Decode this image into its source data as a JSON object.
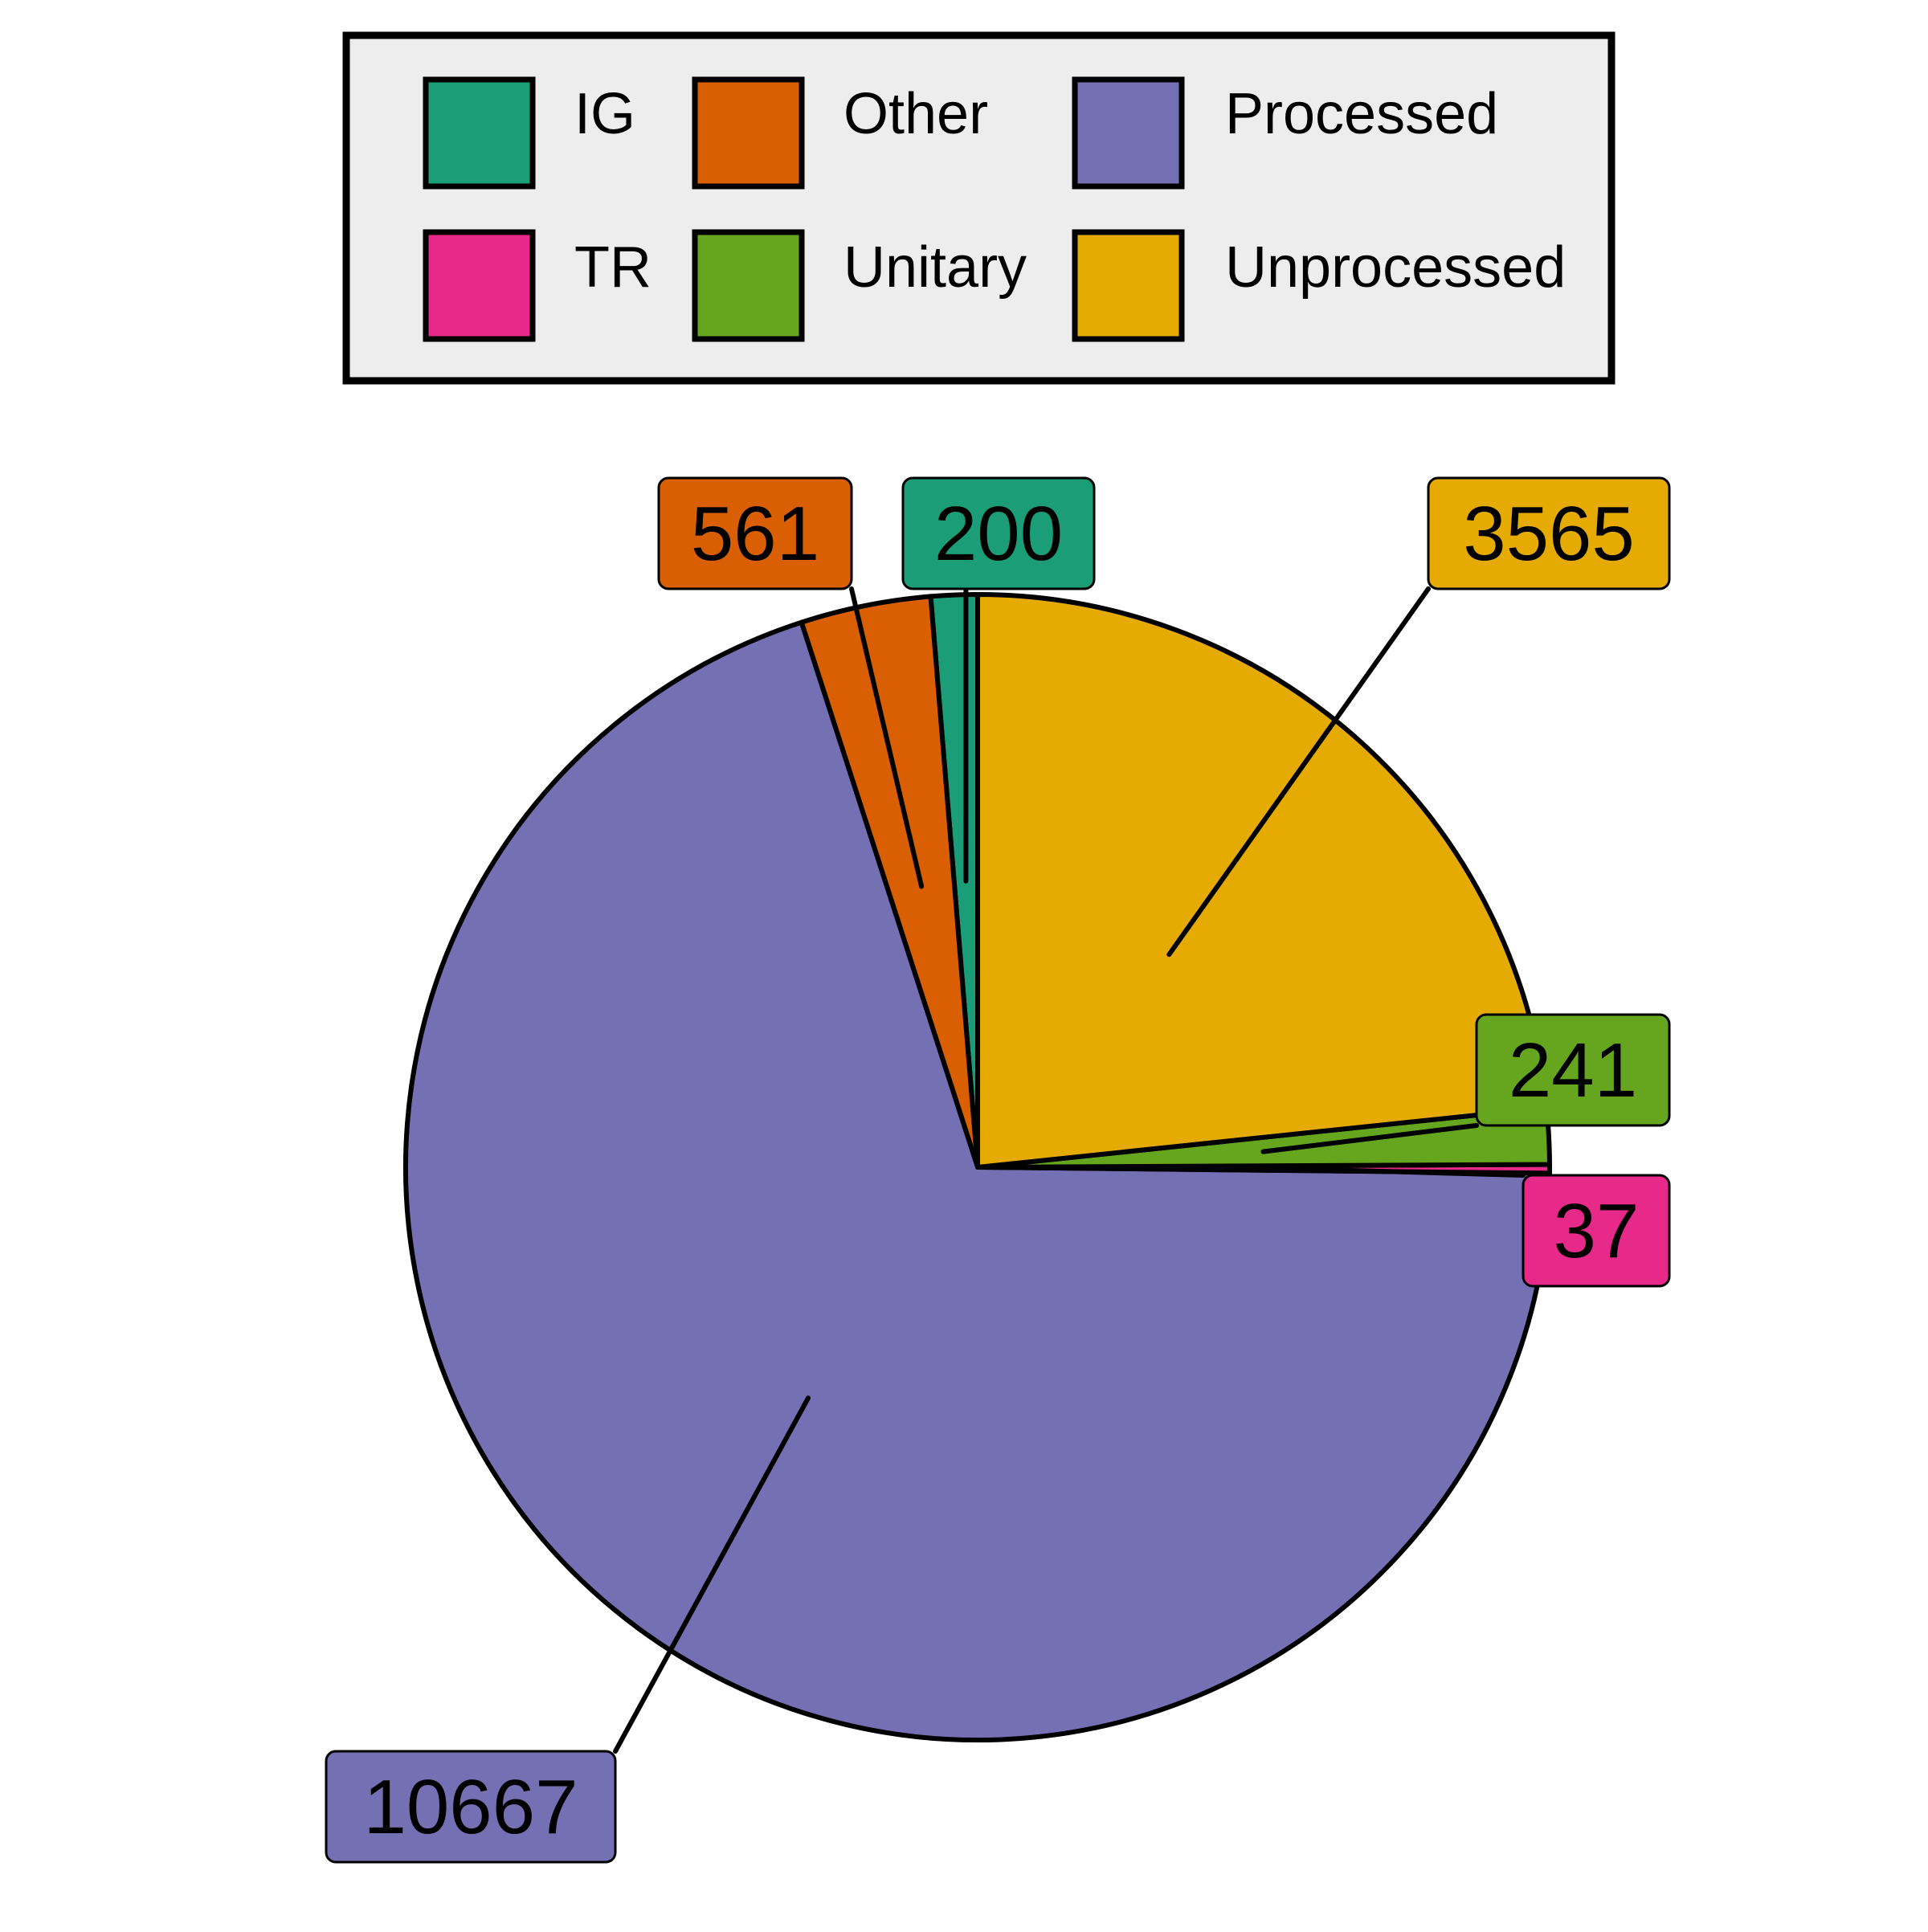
{
  "chart_data": {
    "type": "pie",
    "title": "",
    "legend_position": "top",
    "slices": [
      {
        "label": "IG",
        "value": 200,
        "display": "200",
        "color": "#1B9E77"
      },
      {
        "label": "Other",
        "value": 561,
        "display": "561",
        "color": "#D95F02"
      },
      {
        "label": "Processed",
        "value": 10667,
        "display": "10667",
        "color": "#7570B3"
      },
      {
        "label": "TR",
        "value": 37,
        "display": "37",
        "color": "#E7298A"
      },
      {
        "label": "Unitary",
        "value": 241,
        "display": "241",
        "color": "#66A61E"
      },
      {
        "label": "Unprocessed",
        "value": 3565,
        "display": "3565",
        "color": "#E6AB02"
      }
    ],
    "legend_background": "#EDEDED"
  }
}
